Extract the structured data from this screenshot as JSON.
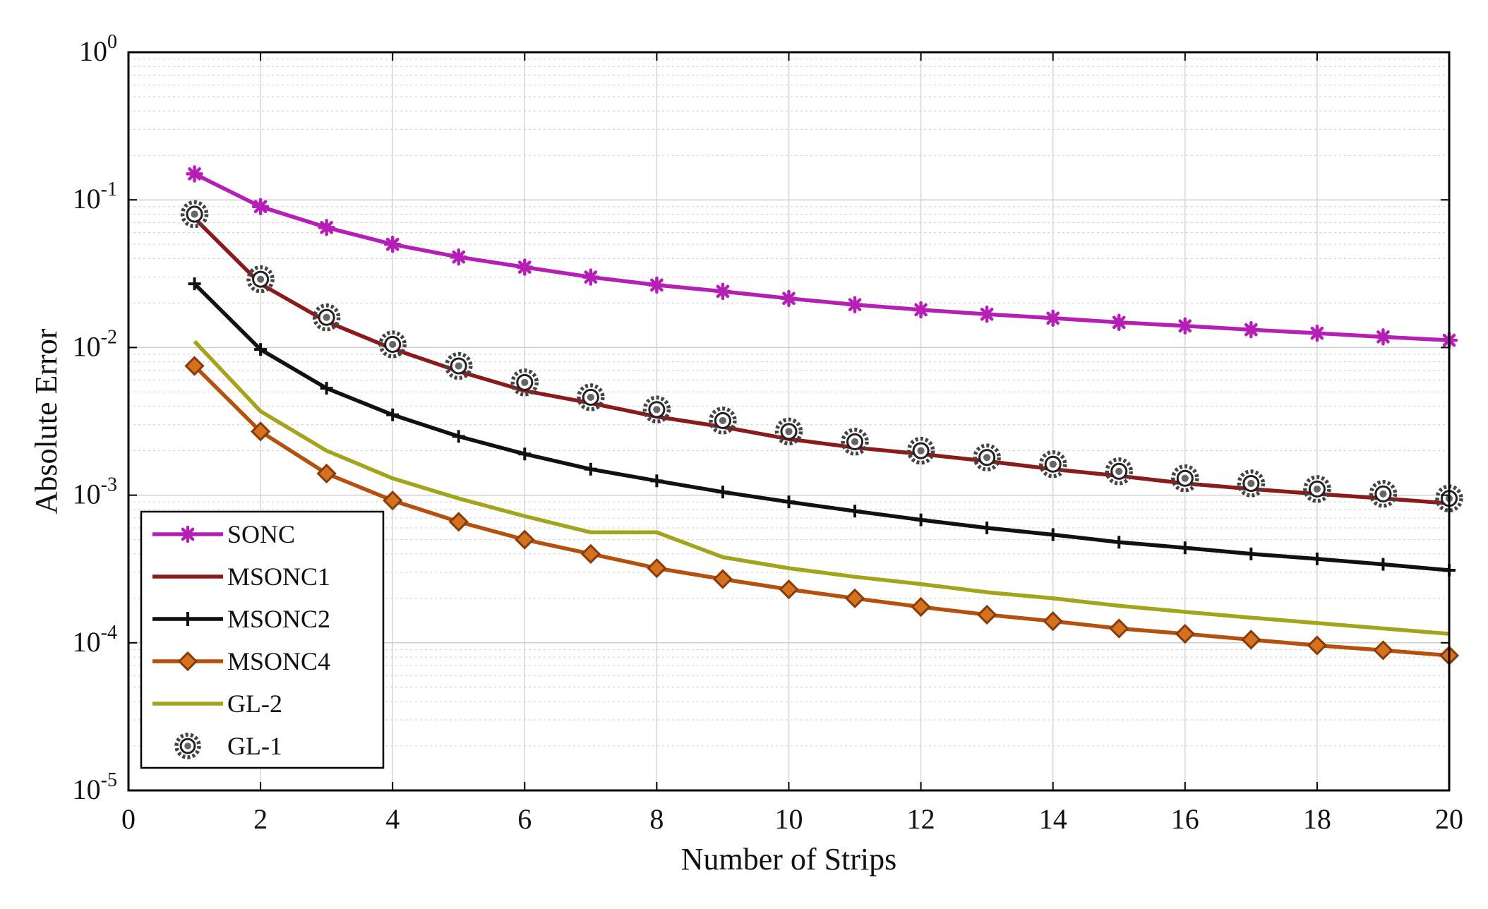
{
  "chart_data": {
    "type": "line",
    "title": "",
    "xlabel": "Number of Strips",
    "ylabel": "Absolute Error",
    "xlim": [
      0,
      20
    ],
    "ylim": [
      1e-05,
      1
    ],
    "yscale": "log",
    "grid": true,
    "legend_position": "bottom-left",
    "x_ticks": [
      {
        "value": 0,
        "label": "0"
      },
      {
        "value": 2,
        "label": "2"
      },
      {
        "value": 4,
        "label": "4"
      },
      {
        "value": 6,
        "label": "6"
      },
      {
        "value": 8,
        "label": "8"
      },
      {
        "value": 10,
        "label": "10"
      },
      {
        "value": 12,
        "label": "12"
      },
      {
        "value": 14,
        "label": "14"
      },
      {
        "value": 16,
        "label": "16"
      },
      {
        "value": 18,
        "label": "18"
      },
      {
        "value": 20,
        "label": "20"
      }
    ],
    "y_ticks": [
      {
        "value": 1,
        "base": "10",
        "exp": "0"
      },
      {
        "value": 0.1,
        "base": "10",
        "exp": "-1"
      },
      {
        "value": 0.01,
        "base": "10",
        "exp": "-2"
      },
      {
        "value": 0.001,
        "base": "10",
        "exp": "-3"
      },
      {
        "value": 0.0001,
        "base": "10",
        "exp": "-4"
      },
      {
        "value": 1e-05,
        "base": "10",
        "exp": "-5"
      }
    ],
    "x": [
      1,
      2,
      3,
      4,
      5,
      6,
      7,
      8,
      9,
      10,
      11,
      12,
      13,
      14,
      15,
      16,
      17,
      18,
      19,
      20
    ],
    "series": [
      {
        "name": "SONC",
        "color": "#b51fb5",
        "marker": "star",
        "values": [
          0.15,
          0.09,
          0.065,
          0.05,
          0.041,
          0.035,
          0.03,
          0.0265,
          0.024,
          0.0215,
          0.0195,
          0.018,
          0.0168,
          0.0158,
          0.0148,
          0.014,
          0.0132,
          0.0125,
          0.0118,
          0.0112
        ]
      },
      {
        "name": "MSONC1",
        "color": "#8b1a1a",
        "marker": "none",
        "values": [
          0.075,
          0.027,
          0.015,
          0.0098,
          0.0069,
          0.0051,
          0.0042,
          0.0034,
          0.0029,
          0.0024,
          0.0021,
          0.0019,
          0.0017,
          0.0015,
          0.00135,
          0.0012,
          0.0011,
          0.00102,
          0.00095,
          0.00088
        ]
      },
      {
        "name": "MSONC2",
        "color": "#111111",
        "marker": "plus",
        "values": [
          0.027,
          0.0097,
          0.0053,
          0.0035,
          0.0025,
          0.0019,
          0.0015,
          0.00125,
          0.00105,
          0.0009,
          0.00078,
          0.00068,
          0.0006,
          0.00054,
          0.00048,
          0.00044,
          0.0004,
          0.00037,
          0.00034,
          0.00031
        ]
      },
      {
        "name": "MSONC4",
        "color": "#b5500f",
        "marker": "diamond",
        "values": [
          0.0075,
          0.0027,
          0.0014,
          0.00092,
          0.00066,
          0.0005,
          0.0004,
          0.00032,
          0.00027,
          0.00023,
          0.0002,
          0.000175,
          0.000155,
          0.00014,
          0.000125,
          0.000115,
          0.000105,
          9.6e-05,
          8.9e-05,
          8.2e-05
        ]
      },
      {
        "name": "GL-2",
        "color": "#a3a31c",
        "marker": "none",
        "values": [
          0.011,
          0.0037,
          0.002,
          0.0013,
          0.00095,
          0.00072,
          0.00056,
          0.00056,
          0.00038,
          0.00032,
          0.00028,
          0.00025,
          0.00022,
          0.0002,
          0.000178,
          0.000162,
          0.000148,
          0.000136,
          0.000125,
          0.000115
        ]
      },
      {
        "name": "GL-1",
        "color": "#555555",
        "marker": "gear",
        "values": [
          0.08,
          0.029,
          0.016,
          0.0105,
          0.0075,
          0.0058,
          0.0046,
          0.0038,
          0.0032,
          0.0027,
          0.0023,
          0.002,
          0.0018,
          0.00162,
          0.00145,
          0.0013,
          0.0012,
          0.0011,
          0.00102,
          0.00095
        ]
      }
    ]
  }
}
